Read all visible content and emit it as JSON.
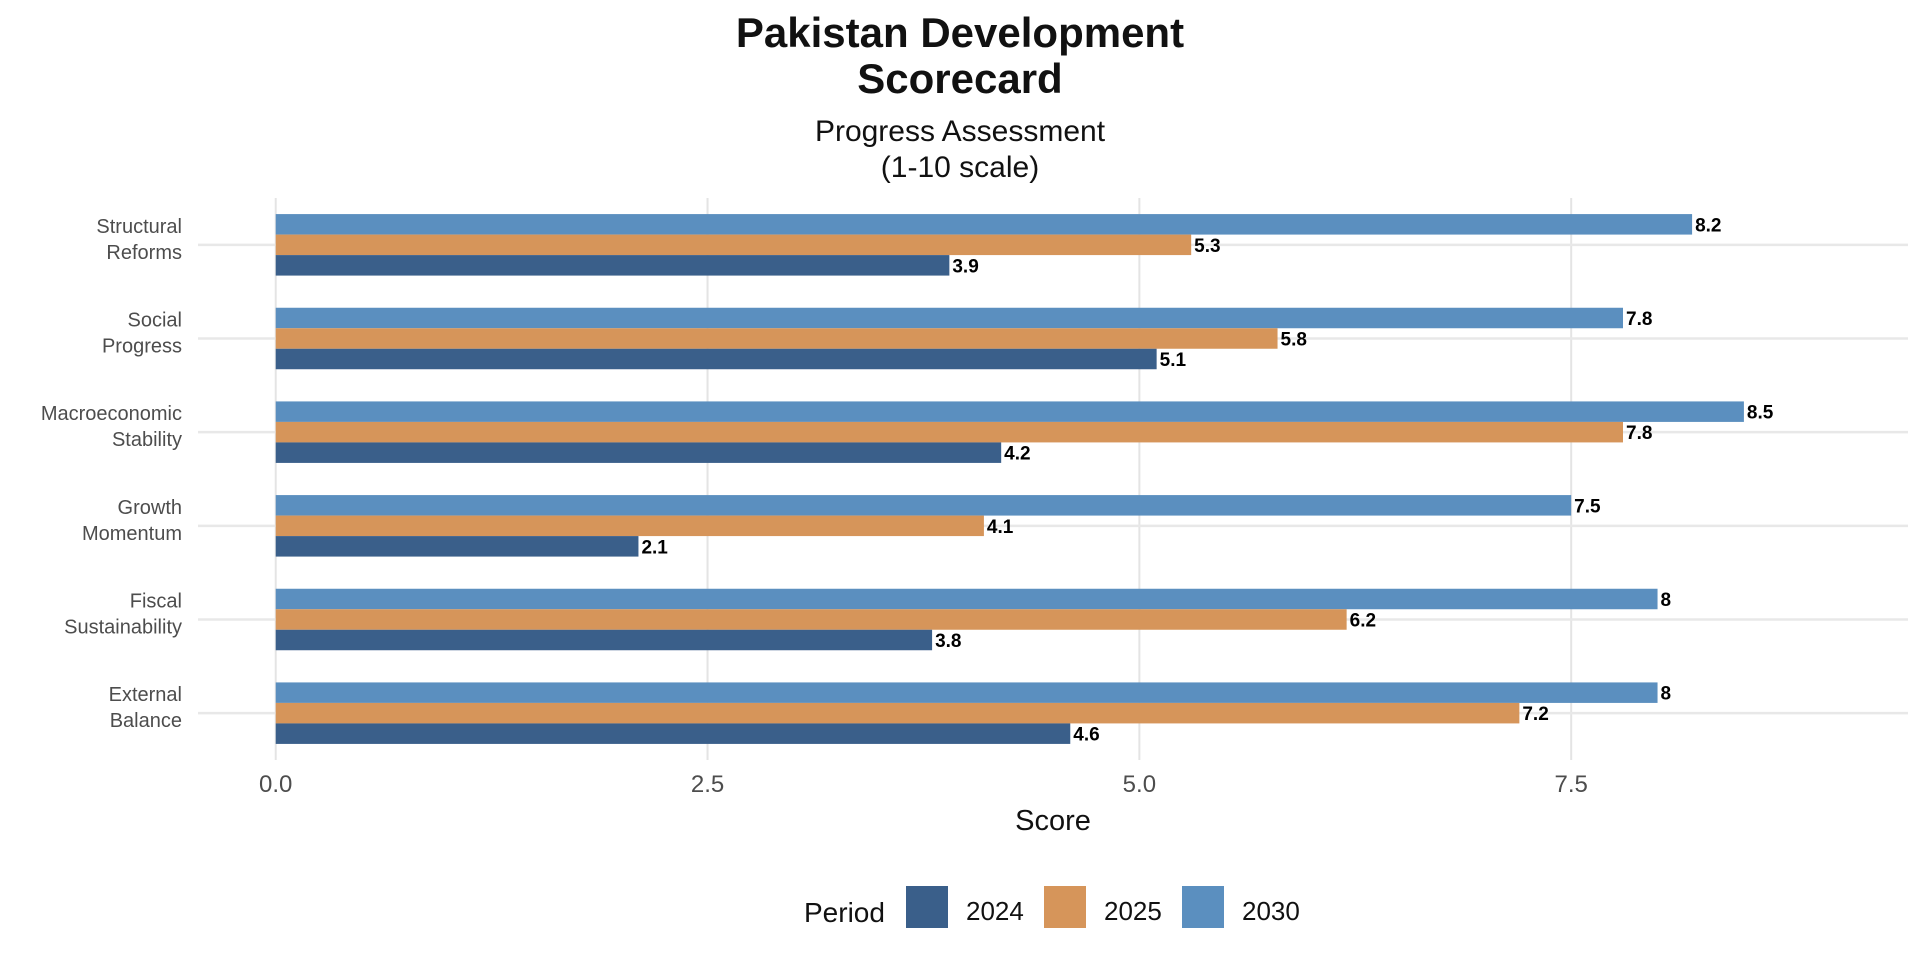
{
  "chart_data": {
    "type": "bar",
    "orientation": "horizontal",
    "title": "Pakistan Development Scorecard",
    "title_lines": [
      "Pakistan Development",
      "Scorecard"
    ],
    "subtitle": "Progress Assessment (1-10 scale)",
    "subtitle_lines": [
      "Progress Assessment",
      "(1-10 scale)"
    ],
    "xlabel": "Score",
    "ylabel": "",
    "xlim": [
      -0.45,
      9.45
    ],
    "x_ticks": [
      0.0,
      2.5,
      5.0,
      7.5
    ],
    "x_tick_labels": [
      "0.0",
      "2.5",
      "5.0",
      "7.5"
    ],
    "grid": true,
    "legend_title": "Period",
    "legend_position": "bottom",
    "categories": [
      [
        "Structural",
        "Reforms"
      ],
      [
        "Social",
        "Progress"
      ],
      [
        "Macroeconomic",
        "Stability"
      ],
      [
        "Growth",
        "Momentum"
      ],
      [
        "Fiscal",
        "Sustainability"
      ],
      [
        "External",
        "Balance"
      ]
    ],
    "series": [
      {
        "name": "2030",
        "color": "#5b8fbf",
        "values": [
          8.2,
          7.8,
          8.5,
          7.5,
          8,
          8
        ],
        "labels": [
          "8.2",
          "7.8",
          "8.5",
          "7.5",
          "8",
          "8"
        ]
      },
      {
        "name": "2025",
        "color": "#d6955a",
        "values": [
          5.3,
          5.8,
          7.8,
          4.1,
          6.2,
          7.2
        ],
        "labels": [
          "5.3",
          "5.8",
          "7.8",
          "4.1",
          "6.2",
          "7.2"
        ]
      },
      {
        "name": "2024",
        "color": "#3a5f8a",
        "values": [
          3.9,
          5.1,
          4.2,
          2.1,
          3.8,
          4.6
        ],
        "labels": [
          "3.9",
          "5.1",
          "4.2",
          "2.1",
          "3.8",
          "4.6"
        ]
      }
    ],
    "legend_order": [
      "2024",
      "2025",
      "2030"
    ]
  }
}
